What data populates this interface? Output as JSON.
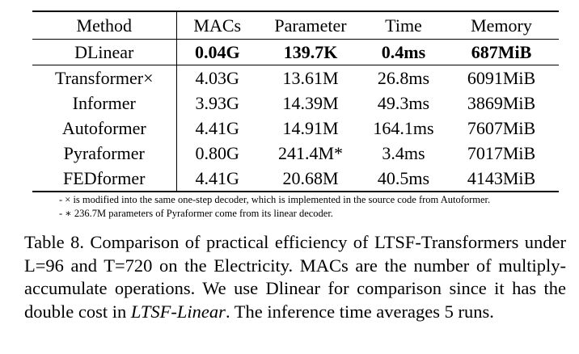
{
  "table": {
    "headers": [
      "Method",
      "MACs",
      "Parameter",
      "Time",
      "Memory"
    ],
    "highlight_row": {
      "method": "DLinear",
      "macs": "0.04G",
      "parameter": "139.7K",
      "time": "0.4ms",
      "memory": "687MiB"
    },
    "rows": [
      {
        "method": "Transformer×",
        "macs": "4.03G",
        "parameter": "13.61M",
        "time": "26.8ms",
        "memory": "6091MiB"
      },
      {
        "method": "Informer",
        "macs": "3.93G",
        "parameter": "14.39M",
        "time": "49.3ms",
        "memory": "3869MiB"
      },
      {
        "method": "Autoformer",
        "macs": "4.41G",
        "parameter": "14.91M",
        "time": "164.1ms",
        "memory": "7607MiB"
      },
      {
        "method": "Pyraformer",
        "macs": "0.80G",
        "parameter": "241.4M*",
        "time": "3.4ms",
        "memory": "7017MiB"
      },
      {
        "method": "FEDformer",
        "macs": "4.41G",
        "parameter": "20.68M",
        "time": "40.5ms",
        "memory": "4143MiB"
      }
    ]
  },
  "footnotes": [
    "- × is modified into the same one-step decoder, which is implemented in the source code from Autoformer.",
    "- ∗ 236.7M parameters of Pyraformer come from its linear decoder."
  ],
  "caption": {
    "part1": "Table 8. Comparison of practical efficiency of LTSF-Transformers under L=96 and T=720 on the Electricity. MACs are the number of multiply-accumulate operations.  We use Dlinear for comparison since it has the double cost in ",
    "emphasis": "LTSF-Linear",
    "part2": ".  The inference time averages 5 runs."
  }
}
